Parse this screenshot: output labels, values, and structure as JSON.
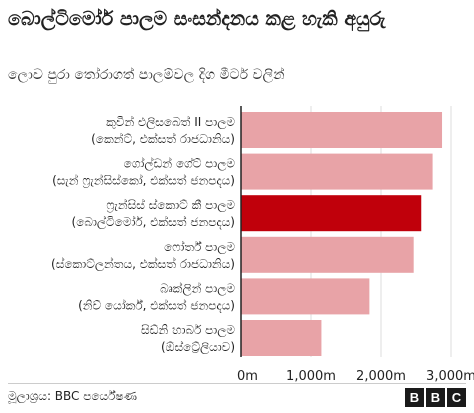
{
  "title": "බොල්ටිමෝර් පාලම සංසන්දනය කළ හැකි අයුරු",
  "subtitle": "ලොව පුරා තෝරාගත් පාලම්වල දිග මීටර් වලින්",
  "source": "මූලාශ්‍රය: BBC පර්යේෂණ",
  "logo_letters": [
    "B",
    "B",
    "C"
  ],
  "colors": {
    "bar": "#e8a3a7",
    "highlight": "#c0000b",
    "grid": "#dddddd"
  },
  "chart_data": {
    "type": "bar",
    "orientation": "horizontal",
    "unit": "m",
    "categories": [
      {
        "name": "කුවීන් එලිසබෙත් II පාලම",
        "place": "(කෙන්ට්, එක්සත් රාජධානිය)"
      },
      {
        "name": "ගෝල්ඩන් ගේට් පාලම",
        "place": "(සැන් ෆ්‍රැන්සිස්කෝ, එක්සත් ජනපදය)"
      },
      {
        "name": "ෆ්‍රැන්සිස් ස්කොට් කී පාලම",
        "place": "(බොල්ටිමෝර්, එක්සත් ජනපදය)"
      },
      {
        "name": "ෆෝර්ත් පාලම",
        "place": "(ස්කොට්ලන්තය, එක්සත් රාජධානිය)"
      },
      {
        "name": "බෘක්ලින් පාලම",
        "place": "(නිව් යෝර්ක්, එක්සත් ජනපදය)"
      },
      {
        "name": "සිඩ්නි හාබර් පාලම",
        "place": "(ඕස්ට්‍රේලියාව)"
      }
    ],
    "values": [
      2872,
      2737,
      2575,
      2467,
      1834,
      1149
    ],
    "highlight_index": 2,
    "xlim": [
      0,
      3000
    ],
    "ticks": [
      {
        "value": 0,
        "label": "0m"
      },
      {
        "value": 1000,
        "label": "1,000m"
      },
      {
        "value": 2000,
        "label": "2,000m"
      },
      {
        "value": 3000,
        "label": "3,000m"
      }
    ],
    "grid": true
  }
}
